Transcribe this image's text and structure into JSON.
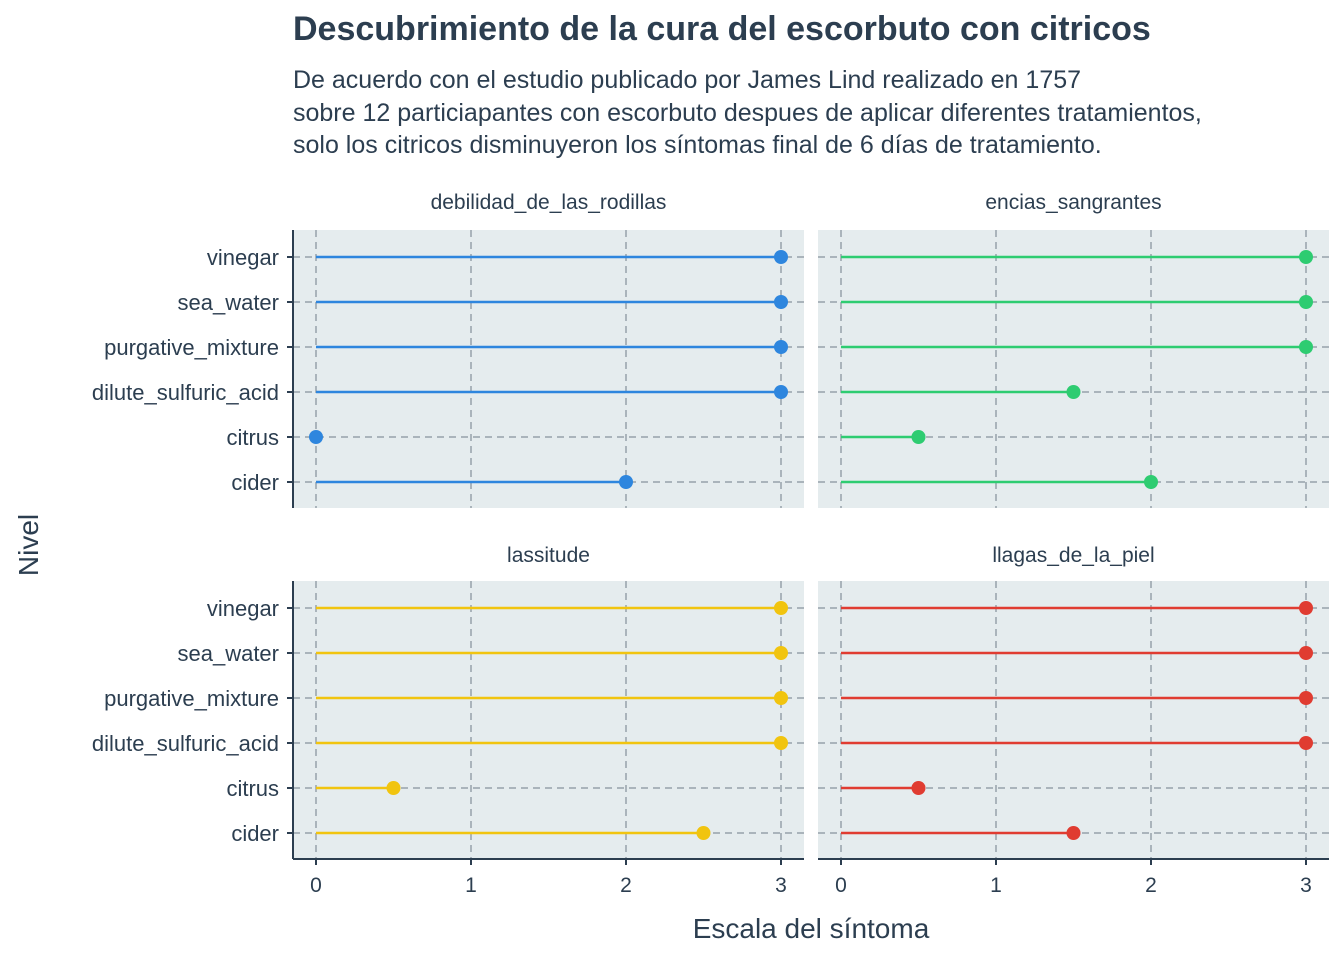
{
  "title": "Descubrimiento de la cura del escorbuto con citricos",
  "subtitle": [
    "De acuerdo con el estudio publicado por James Lind realizado en 1757",
    "sobre 12 particiapantes con escorbuto despues de aplicar diferentes tratamientos,",
    "solo los citricos disminuyeron los síntomas final de 6 días de tratamiento."
  ],
  "chart_data": {
    "type": "lollipop",
    "title": "Descubrimiento de la cura del escorbuto con citricos",
    "xlabel": "Escala del síntoma",
    "ylabel": "Nivel",
    "xlim": [
      0,
      3
    ],
    "x_ticks": [
      "0",
      "1",
      "2",
      "3"
    ],
    "grid": "dashed major gridlines",
    "panel_background": "#e5ecee",
    "categories": [
      "cider",
      "citrus",
      "dilute_sulfuric_acid",
      "purgative_mixture",
      "sea_water",
      "vinegar"
    ],
    "panels": [
      {
        "name": "debilidad_de_las_rodillas",
        "color": "#2e86de",
        "values": [
          2,
          0,
          3,
          3,
          3,
          3
        ]
      },
      {
        "name": "encias_sangrantes",
        "color": "#2ecc71",
        "values": [
          2,
          0.5,
          1.5,
          3,
          3,
          3
        ]
      },
      {
        "name": "lassitude",
        "color": "#f1c40f",
        "values": [
          2.5,
          0.5,
          3,
          3,
          3,
          3
        ]
      },
      {
        "name": "llagas_de_la_piel",
        "color": "#e03c31",
        "values": [
          1.5,
          0.5,
          3,
          3,
          3,
          3
        ]
      }
    ]
  }
}
